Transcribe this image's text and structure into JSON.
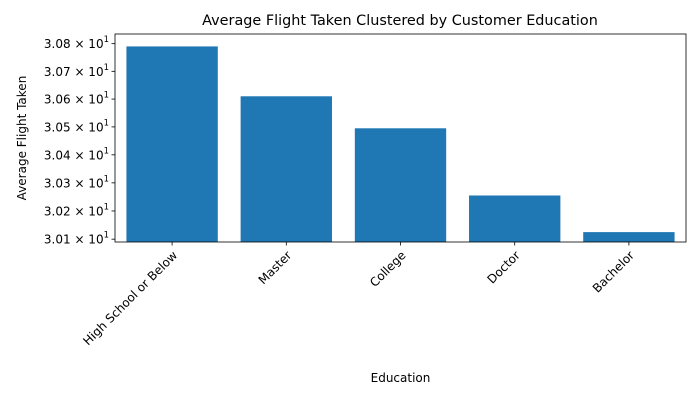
{
  "chart_data": {
    "type": "bar",
    "title": "Average Flight Taken Clustered by Customer Education",
    "xlabel": "Education",
    "ylabel": "Average Flight Taken",
    "yscale": "log",
    "categories": [
      "High School or Below",
      "Master",
      "College",
      "Doctor",
      "Bachelor"
    ],
    "values": [
      30.79,
      30.61,
      30.495,
      30.255,
      30.125
    ],
    "ylim": [
      30.09,
      30.835
    ],
    "yticks": [
      30.1,
      30.2,
      30.3,
      30.4,
      30.5,
      30.6,
      30.7,
      30.8
    ],
    "ytick_labels": [
      {
        "mantissa": "3.01",
        "times": "×",
        "base": "10",
        "exp": "1"
      },
      {
        "mantissa": "3.02",
        "times": "×",
        "base": "10",
        "exp": "1"
      },
      {
        "mantissa": "3.03",
        "times": "×",
        "base": "10",
        "exp": "1"
      },
      {
        "mantissa": "3.04",
        "times": "×",
        "base": "10",
        "exp": "1"
      },
      {
        "mantissa": "3.05",
        "times": "×",
        "base": "10",
        "exp": "1"
      },
      {
        "mantissa": "3.06",
        "times": "×",
        "base": "10",
        "exp": "1"
      },
      {
        "mantissa": "3.07",
        "times": "×",
        "base": "10",
        "exp": "1"
      },
      {
        "mantissa": "3.08",
        "times": "×",
        "base": "10",
        "exp": "1"
      }
    ],
    "xtick_rotation": 45,
    "bar_color": "#1f77b4",
    "grid": false,
    "legend": "none"
  }
}
